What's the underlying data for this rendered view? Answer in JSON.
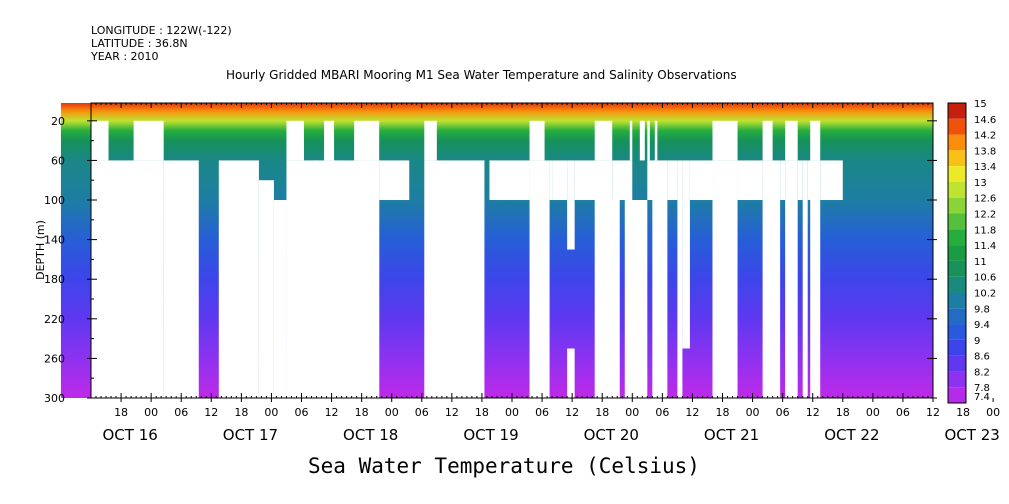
{
  "header": {
    "longitude": "LONGITUDE : 122W(-122)",
    "latitude": "LATITUDE : 36.8N",
    "year": "YEAR : 2010"
  },
  "chart_data": {
    "type": "heatmap",
    "title": "Hourly Gridded MBARI Mooring M1 Sea Water Temperature and Salinity Observations",
    "xlabel": "Sea Water Temperature (Celsius)",
    "ylabel": "DEPTH (m)",
    "x_hour_ticks": [
      "18",
      "00",
      "06",
      "12",
      "18",
      "00",
      "06",
      "12",
      "18",
      "00",
      "06",
      "12",
      "18",
      "00",
      "06",
      "12",
      "18",
      "00",
      "06",
      "12",
      "18",
      "00",
      "06",
      "12",
      "18",
      "00",
      "06",
      "12",
      "18",
      "00",
      "06",
      "12",
      "18",
      "00",
      "06",
      "12",
      "18",
      "00",
      "06",
      "12",
      "18",
      "00",
      "06",
      "12"
    ],
    "x_day_labels": [
      "OCT 16",
      "OCT 17",
      "OCT 18",
      "OCT 19",
      "OCT 20",
      "OCT 21",
      "OCT 22",
      "OCT 23"
    ],
    "xlim_hours_from_oct16_00": [
      12,
      180
    ],
    "y_ticks": [
      "20",
      "60",
      "100",
      "140",
      "180",
      "220",
      "260",
      "300"
    ],
    "ylim": [
      300,
      2
    ],
    "colorbar_ticks": [
      "15",
      "14.6",
      "14.2",
      "13.8",
      "13.4",
      "13",
      "12.6",
      "12.2",
      "11.8",
      "11.4",
      "11",
      "10.6",
      "10.2",
      "9.8",
      "9.4",
      "9",
      "8.6",
      "8.2",
      "7.8",
      "7.4"
    ],
    "color_range": [
      7.4,
      15
    ],
    "temperature_profile": [
      {
        "depth": 2,
        "temp": 14.6
      },
      {
        "depth": 10,
        "temp": 14.0
      },
      {
        "depth": 20,
        "temp": 12.8
      },
      {
        "depth": 30,
        "temp": 11.6
      },
      {
        "depth": 40,
        "temp": 10.8
      },
      {
        "depth": 60,
        "temp": 10.3
      },
      {
        "depth": 100,
        "temp": 10.0
      },
      {
        "depth": 140,
        "temp": 9.3
      },
      {
        "depth": 180,
        "temp": 8.8
      },
      {
        "depth": 220,
        "temp": 8.4
      },
      {
        "depth": 260,
        "temp": 8.0
      },
      {
        "depth": 300,
        "temp": 7.5
      }
    ],
    "data_start_hour": 6,
    "missing_blocks": [
      {
        "t0": 0,
        "t1": 6,
        "d0": 2,
        "d1": 300
      },
      {
        "t0": 10,
        "t1": 15.5,
        "d0": 20,
        "d1": 60
      },
      {
        "t0": 10,
        "t1": 26.5,
        "d0": 60,
        "d1": 300
      },
      {
        "t0": 20.5,
        "t1": 26.5,
        "d0": 20,
        "d1": 60
      },
      {
        "t0": 26.5,
        "t1": 33.5,
        "d0": 60,
        "d1": 300
      },
      {
        "t0": 37.5,
        "t1": 45.5,
        "d0": 60,
        "d1": 300
      },
      {
        "t0": 45.5,
        "t1": 48.5,
        "d0": 80,
        "d1": 300
      },
      {
        "t0": 48.5,
        "t1": 51,
        "d0": 100,
        "d1": 300
      },
      {
        "t0": 51,
        "t1": 54.5,
        "d0": 20,
        "d1": 60
      },
      {
        "t0": 51,
        "t1": 69.5,
        "d0": 60,
        "d1": 300
      },
      {
        "t0": 56.5,
        "t1": 57,
        "d0": 60,
        "d1": 80
      },
      {
        "t0": 57,
        "t1": 58.5,
        "d0": 80,
        "d1": 300
      },
      {
        "t0": 58.5,
        "t1": 60.5,
        "d0": 20,
        "d1": 60
      },
      {
        "t0": 60,
        "t1": 61,
        "d0": 60,
        "d1": 100
      },
      {
        "t0": 61.5,
        "t1": 62,
        "d0": 60,
        "d1": 100
      },
      {
        "t0": 64.5,
        "t1": 69.5,
        "d0": 20,
        "d1": 60
      },
      {
        "t0": 65,
        "t1": 69.5,
        "d0": 60,
        "d1": 300
      },
      {
        "t0": 69.5,
        "t1": 75.5,
        "d0": 60,
        "d1": 100
      },
      {
        "t0": 78.5,
        "t1": 81,
        "d0": 20,
        "d1": 60
      },
      {
        "t0": 78.5,
        "t1": 90.5,
        "d0": 60,
        "d1": 300
      },
      {
        "t0": 91.5,
        "t1": 92.5,
        "d0": 60,
        "d1": 100
      },
      {
        "t0": 92.5,
        "t1": 97,
        "d0": 60,
        "d1": 100
      },
      {
        "t0": 97,
        "t1": 99.5,
        "d0": 60,
        "d1": 100
      },
      {
        "t0": 99.5,
        "t1": 102.5,
        "d0": 20,
        "d1": 60
      },
      {
        "t0": 99.5,
        "t1": 103.5,
        "d0": 60,
        "d1": 300
      },
      {
        "t0": 103.5,
        "t1": 104,
        "d0": 60,
        "d1": 100
      },
      {
        "t0": 104,
        "t1": 107,
        "d0": 60,
        "d1": 100
      },
      {
        "t0": 107,
        "t1": 108.5,
        "d0": 60,
        "d1": 150
      },
      {
        "t0": 107,
        "t1": 108.5,
        "d0": 250,
        "d1": 300
      },
      {
        "t0": 108.5,
        "t1": 116,
        "d0": 60,
        "d1": 100
      },
      {
        "t0": 112.5,
        "t1": 116,
        "d0": 20,
        "d1": 60
      },
      {
        "t0": 112.5,
        "t1": 117.5,
        "d0": 100,
        "d1": 300
      },
      {
        "t0": 116,
        "t1": 120,
        "d0": 60,
        "d1": 100
      },
      {
        "t0": 119.5,
        "t1": 120,
        "d0": 20,
        "d1": 60
      },
      {
        "t0": 118.5,
        "t1": 123,
        "d0": 100,
        "d1": 300
      },
      {
        "t0": 121.5,
        "t1": 122.5,
        "d0": 20,
        "d1": 60
      },
      {
        "t0": 123,
        "t1": 123.5,
        "d0": 20,
        "d1": 60
      },
      {
        "t0": 123,
        "t1": 127,
        "d0": 60,
        "d1": 100
      },
      {
        "t0": 124.5,
        "t1": 125,
        "d0": 20,
        "d1": 60
      },
      {
        "t0": 124,
        "t1": 127,
        "d0": 100,
        "d1": 300
      },
      {
        "t0": 127,
        "t1": 129,
        "d0": 60,
        "d1": 100
      },
      {
        "t0": 129,
        "t1": 130,
        "d0": 60,
        "d1": 300
      },
      {
        "t0": 130,
        "t1": 131.5,
        "d0": 60,
        "d1": 250
      },
      {
        "t0": 131.5,
        "t1": 136,
        "d0": 60,
        "d1": 100
      },
      {
        "t0": 136,
        "t1": 141,
        "d0": 20,
        "d1": 60
      },
      {
        "t0": 136,
        "t1": 141,
        "d0": 60,
        "d1": 300
      },
      {
        "t0": 141,
        "t1": 146,
        "d0": 60,
        "d1": 100
      },
      {
        "t0": 146,
        "t1": 149.5,
        "d0": 60,
        "d1": 100
      },
      {
        "t0": 146,
        "t1": 148,
        "d0": 20,
        "d1": 60
      },
      {
        "t0": 146,
        "t1": 149.5,
        "d0": 100,
        "d1": 300
      },
      {
        "t0": 149.5,
        "t1": 150.5,
        "d0": 60,
        "d1": 100
      },
      {
        "t0": 150.5,
        "t1": 153,
        "d0": 60,
        "d1": 300
      },
      {
        "t0": 150.5,
        "t1": 153,
        "d0": 20,
        "d1": 60
      },
      {
        "t0": 153,
        "t1": 154,
        "d0": 60,
        "d1": 100
      },
      {
        "t0": 154,
        "t1": 155,
        "d0": 60,
        "d1": 300
      },
      {
        "t0": 155,
        "t1": 157.5,
        "d0": 60,
        "d1": 100
      },
      {
        "t0": 155.5,
        "t1": 157.5,
        "d0": 20,
        "d1": 60
      },
      {
        "t0": 155.5,
        "t1": 157.5,
        "d0": 100,
        "d1": 300
      },
      {
        "t0": 157.5,
        "t1": 162,
        "d0": 60,
        "d1": 100
      }
    ]
  }
}
